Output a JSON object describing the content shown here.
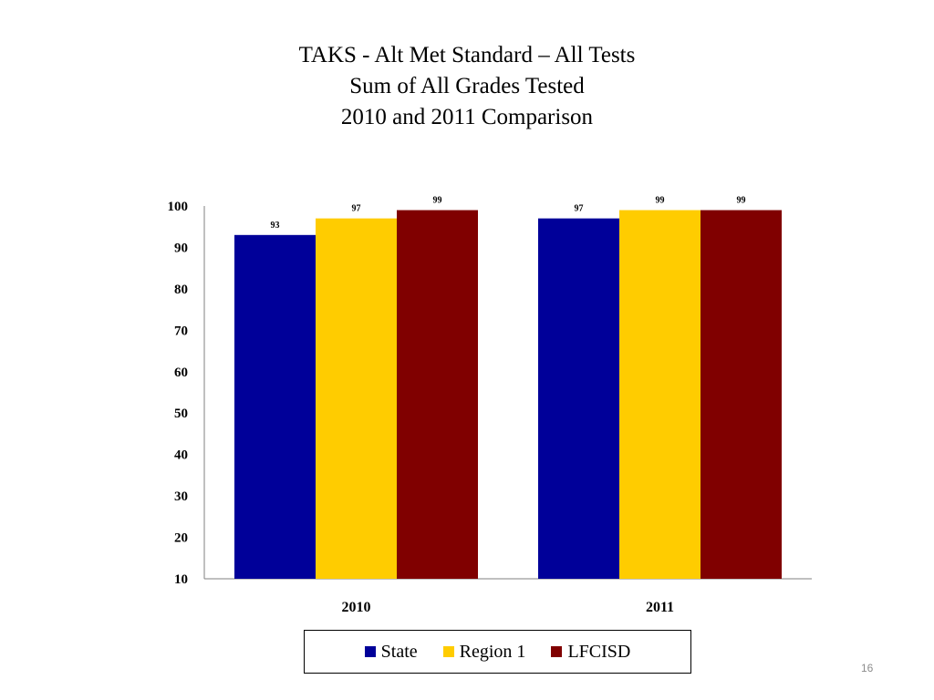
{
  "slide": {
    "page_number": "16"
  },
  "chart_data": {
    "type": "bar",
    "title": "TAKS - Alt Met Standard – All Tests",
    "subtitle_lines": [
      "Sum of All Grades Tested",
      "2010 and 2011 Comparison"
    ],
    "categories": [
      "2010",
      "2011"
    ],
    "series": [
      {
        "name": "State",
        "color": "#000099",
        "values": [
          93,
          97
        ]
      },
      {
        "name": "Region 1",
        "color": "#FFCC00",
        "values": [
          97,
          99
        ]
      },
      {
        "name": "LFCISD",
        "color": "#800000",
        "values": [
          99,
          99
        ]
      }
    ],
    "ylim": [
      10,
      100
    ],
    "yticks": [
      "10",
      "20",
      "30",
      "40",
      "50",
      "60",
      "70",
      "80",
      "90",
      "100"
    ],
    "data_labels": [
      [
        "93",
        "97"
      ],
      [
        "97",
        "99"
      ],
      [
        "99",
        "99"
      ]
    ],
    "grid": false,
    "legend_position": "bottom",
    "xlabel": "",
    "ylabel": ""
  }
}
